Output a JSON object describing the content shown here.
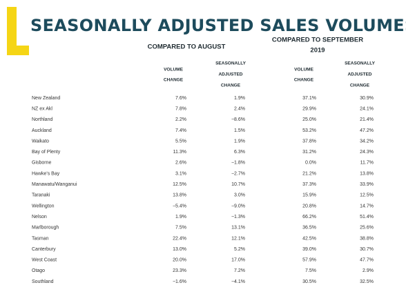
{
  "header": {
    "title": "SEASONALLY ADJUSTED SALES VOLUMES"
  },
  "table": {
    "groups": [
      [
        "COMPARED TO AUGUST"
      ],
      [
        "COMPARED TO SEPTEMBER",
        "2019"
      ]
    ],
    "columns": [
      [
        "VOLUME",
        "CHANGE"
      ],
      [
        "SEASONALLY",
        "ADJUSTED",
        "CHANGE"
      ],
      [
        "VOLUME",
        "CHANGE"
      ],
      [
        "SEASONALLY",
        "ADJUSTED",
        "CHANGE"
      ]
    ],
    "rows": [
      [
        "New Zealand",
        "7.6%",
        "1.9%",
        "37.1%",
        "30.9%"
      ],
      [
        "NZ ex Akl",
        "7.8%",
        "2.4%",
        "29.9%",
        "24.1%"
      ],
      [
        "Northland",
        "2.2%",
        "−8.6%",
        "25.0%",
        "21.4%"
      ],
      [
        "Auckland",
        "7.4%",
        "1.5%",
        "53.2%",
        "47.2%"
      ],
      [
        "Waikato",
        "5.5%",
        "1.9%",
        "37.8%",
        "34.2%"
      ],
      [
        "Bay of Plenty",
        "11.3%",
        "6.3%",
        "31.2%",
        "24.3%"
      ],
      [
        "Gisborne",
        "2.6%",
        "−1.8%",
        "0.0%",
        "11.7%"
      ],
      [
        "Hawke's Bay",
        "3.1%",
        "−2.7%",
        "21.2%",
        "13.8%"
      ],
      [
        "Manawatu/Wanganui",
        "12.5%",
        "10.7%",
        "37.3%",
        "33.9%"
      ],
      [
        "Taranaki",
        "13.8%",
        "3.0%",
        "15.9%",
        "12.5%"
      ],
      [
        "Wellington",
        "−5.4%",
        "−9.0%",
        "20.8%",
        "14.7%"
      ],
      [
        "Nelson",
        "1.9%",
        "−1.3%",
        "66.2%",
        "51.4%"
      ],
      [
        "Marlborough",
        "7.5%",
        "13.1%",
        "36.5%",
        "25.6%"
      ],
      [
        "Tasman",
        "22.4%",
        "12.1%",
        "42.5%",
        "38.8%"
      ],
      [
        "Canterbury",
        "13.0%",
        "5.2%",
        "39.0%",
        "30.7%"
      ],
      [
        "West Coast",
        "20.0%",
        "17.0%",
        "57.9%",
        "47.7%"
      ],
      [
        "Otago",
        "23.3%",
        "7.2%",
        "7.5%",
        "2.9%"
      ],
      [
        "Southland",
        "−1.6%",
        "−4.1%",
        "30.5%",
        "32.5%"
      ]
    ]
  }
}
